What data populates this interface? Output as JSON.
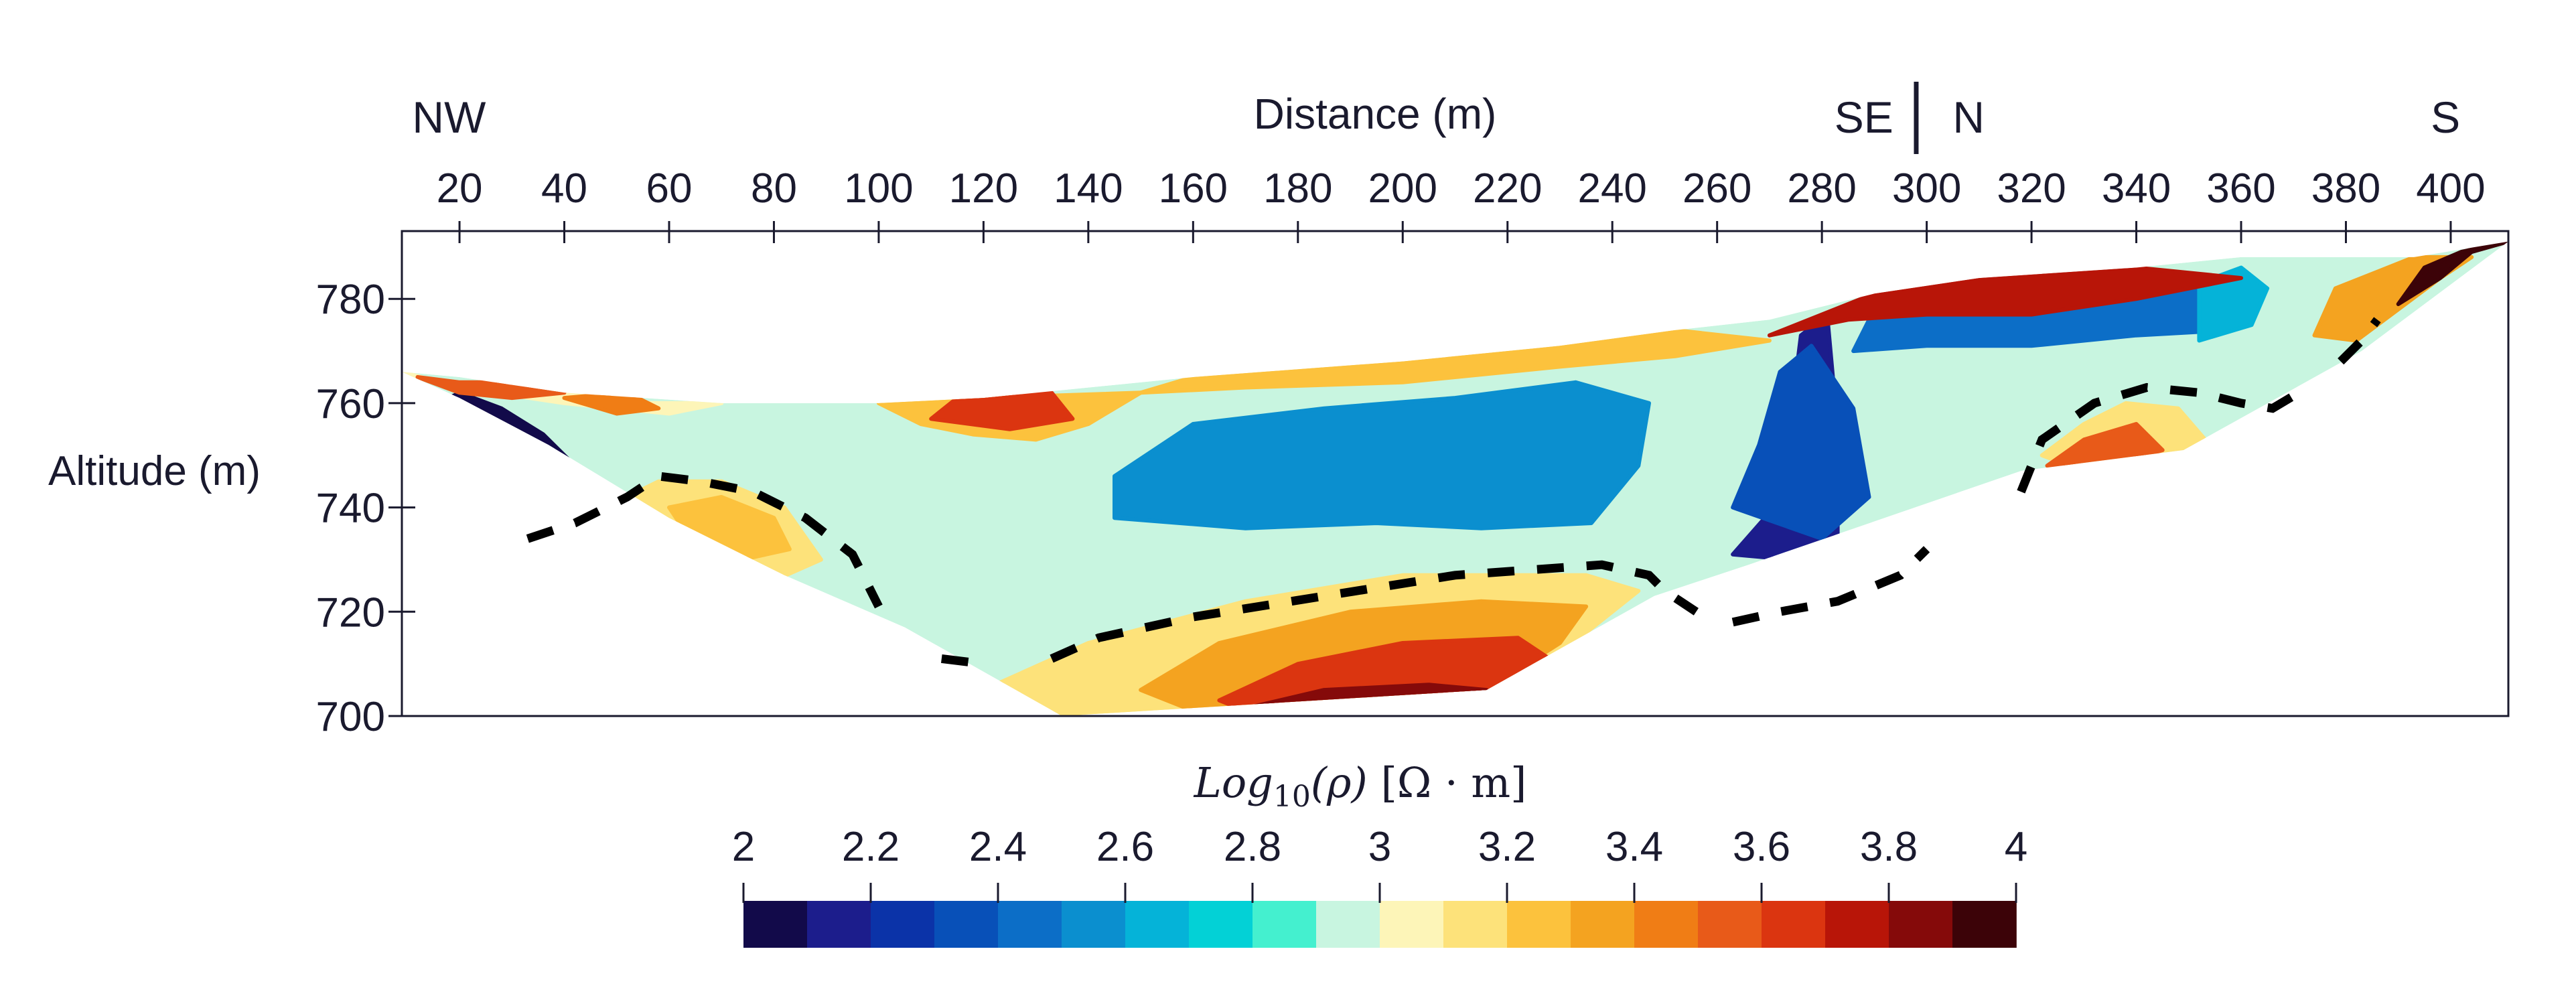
{
  "chart_data": {
    "type": "heatmap",
    "title": "",
    "xlabel": "Distance (m)",
    "ylabel": "Altitude (m)",
    "x_ticks": [
      20,
      40,
      60,
      80,
      100,
      120,
      140,
      160,
      180,
      200,
      220,
      240,
      260,
      280,
      300,
      320,
      340,
      360,
      380,
      400
    ],
    "y_ticks": [
      700,
      720,
      740,
      760,
      780
    ],
    "xlim": [
      9,
      411
    ],
    "ylim": [
      700,
      793
    ],
    "orientation_labels": [
      {
        "text": "NW",
        "x": 18
      },
      {
        "text": "SE",
        "x": 288
      },
      {
        "text": "N",
        "x": 308
      },
      {
        "text": "S",
        "x": 399
      }
    ],
    "orientation_divider_x": 298,
    "colorbar": {
      "label_prefix": "Log",
      "label_subscript": "10",
      "label_symbol": "(ρ)",
      "label_units": "[Ω · m]",
      "ticks": [
        2,
        2.2,
        2.4,
        2.6,
        2.8,
        3,
        3.2,
        3.4,
        3.6,
        3.8,
        4
      ],
      "tick_labels": [
        "2",
        "2.2",
        "2.4",
        "2.6",
        "2.8",
        "3",
        "3.2",
        "3.4",
        "3.6",
        "3.8",
        "4"
      ],
      "range": [
        2,
        4
      ],
      "colors": [
        "#120a4a",
        "#1c1d8c",
        "#0b33a8",
        "#0850b8",
        "#0c6ec7",
        "#0b8fcf",
        "#05b3d8",
        "#03d1d6",
        "#44f0cf",
        "#c8f5e0",
        "#fdf5b8",
        "#fde27a",
        "#fcc23d",
        "#f4a320",
        "#f07d15",
        "#e85a19",
        "#db3510",
        "#b81508",
        "#850a0a",
        "#3c0308"
      ]
    },
    "background_value": 2.9,
    "section_outline": [
      [
        9,
        766
      ],
      [
        20,
        761
      ],
      [
        37,
        752
      ],
      [
        60,
        738
      ],
      [
        82,
        727
      ],
      [
        105,
        717
      ],
      [
        135,
        700
      ],
      [
        216,
        705
      ],
      [
        248,
        723
      ],
      [
        266,
        729
      ],
      [
        318,
        747
      ],
      [
        349,
        751
      ],
      [
        383,
        770
      ],
      [
        411,
        791
      ],
      [
        393,
        788
      ],
      [
        360,
        788
      ],
      [
        340,
        786
      ],
      [
        310,
        784
      ],
      [
        290,
        781
      ],
      [
        270,
        776
      ],
      [
        252,
        774
      ],
      [
        230,
        771
      ],
      [
        200,
        768
      ],
      [
        160,
        765
      ],
      [
        120,
        761
      ],
      [
        100,
        760
      ],
      [
        70,
        760
      ],
      [
        40,
        762
      ],
      [
        20,
        765
      ]
    ],
    "anomalies": [
      {
        "value": 2.05,
        "polygon": [
          [
            14,
            759
          ],
          [
            20,
            762
          ],
          [
            28,
            759
          ],
          [
            36,
            754
          ],
          [
            42,
            748
          ],
          [
            40,
            744
          ],
          [
            34,
            748
          ],
          [
            24,
            752
          ]
        ]
      },
      {
        "value": 2.1,
        "polygon": [
          [
            263,
            731
          ],
          [
            270,
            739
          ],
          [
            274,
            757
          ],
          [
            276,
            773
          ],
          [
            281,
            777
          ],
          [
            283,
            755
          ],
          [
            283,
            735
          ],
          [
            274,
            730
          ]
        ]
      },
      {
        "value": 2.35,
        "polygon": [
          [
            263,
            740
          ],
          [
            268,
            752
          ],
          [
            272,
            766
          ],
          [
            278,
            771
          ],
          [
            286,
            759
          ],
          [
            289,
            742
          ],
          [
            280,
            734
          ]
        ]
      },
      {
        "value": 2.45,
        "polygon": [
          [
            286,
            770
          ],
          [
            300,
            771
          ],
          [
            320,
            771
          ],
          [
            340,
            773
          ],
          [
            358,
            774
          ],
          [
            360,
            781
          ],
          [
            340,
            783
          ],
          [
            310,
            780
          ],
          [
            290,
            778
          ]
        ]
      },
      {
        "value": 2.55,
        "polygon": [
          [
            145,
            738
          ],
          [
            170,
            736
          ],
          [
            195,
            737
          ],
          [
            215,
            736
          ],
          [
            236,
            737
          ],
          [
            245,
            748
          ],
          [
            247,
            760
          ],
          [
            233,
            764
          ],
          [
            210,
            761
          ],
          [
            185,
            759
          ],
          [
            160,
            756
          ],
          [
            145,
            746
          ]
        ]
      },
      {
        "value": 2.6,
        "polygon": [
          [
            352,
            772
          ],
          [
            362,
            775
          ],
          [
            365,
            782
          ],
          [
            360,
            786
          ],
          [
            352,
            783
          ]
        ]
      },
      {
        "value": 3.1,
        "polygon": [
          [
            48,
            740
          ],
          [
            58,
            745
          ],
          [
            70,
            745
          ],
          [
            82,
            740
          ],
          [
            89,
            730
          ],
          [
            80,
            726
          ],
          [
            65,
            730
          ],
          [
            52,
            736
          ]
        ]
      },
      {
        "value": 3.3,
        "polygon": [
          [
            60,
            740
          ],
          [
            70,
            742
          ],
          [
            80,
            738
          ],
          [
            83,
            732
          ],
          [
            74,
            730
          ],
          [
            64,
            734
          ]
        ]
      },
      {
        "value": 3.1,
        "polygon": [
          [
            322,
            750
          ],
          [
            330,
            756
          ],
          [
            338,
            760
          ],
          [
            348,
            759
          ],
          [
            354,
            752
          ],
          [
            345,
            749
          ],
          [
            330,
            747
          ]
        ]
      },
      {
        "value": 3.5,
        "polygon": [
          [
            323,
            748
          ],
          [
            330,
            753
          ],
          [
            340,
            756
          ],
          [
            345,
            751
          ],
          [
            335,
            748
          ]
        ]
      },
      {
        "value": 3.1,
        "polygon": [
          [
            120,
            705
          ],
          [
            140,
            714
          ],
          [
            170,
            722
          ],
          [
            200,
            727
          ],
          [
            235,
            727
          ],
          [
            245,
            724
          ],
          [
            235,
            716
          ],
          [
            215,
            705
          ],
          [
            135,
            700
          ]
        ]
      },
      {
        "value": 3.35,
        "polygon": [
          [
            150,
            705
          ],
          [
            165,
            714
          ],
          [
            190,
            720
          ],
          [
            215,
            722
          ],
          [
            235,
            721
          ],
          [
            230,
            714
          ],
          [
            216,
            705
          ],
          [
            160,
            701
          ]
        ]
      },
      {
        "value": 3.65,
        "polygon": [
          [
            165,
            703
          ],
          [
            180,
            710
          ],
          [
            200,
            714
          ],
          [
            222,
            715
          ],
          [
            228,
            711
          ],
          [
            216,
            705
          ],
          [
            170,
            701
          ]
        ]
      },
      {
        "value": 3.85,
        "polygon": [
          [
            168,
            701
          ],
          [
            185,
            705
          ],
          [
            205,
            706
          ],
          [
            216,
            705
          ],
          [
            200,
            701
          ]
        ]
      },
      {
        "value": 3.2,
        "polygon": [
          [
            100,
            760
          ],
          [
            108,
            756
          ],
          [
            118,
            754
          ],
          [
            130,
            753
          ],
          [
            140,
            756
          ],
          [
            150,
            762
          ],
          [
            120,
            761
          ]
        ]
      },
      {
        "value": 3.6,
        "polygon": [
          [
            110,
            757
          ],
          [
            125,
            755
          ],
          [
            137,
            757
          ],
          [
            133,
            762
          ],
          [
            115,
            761
          ]
        ]
      },
      {
        "value": 3.3,
        "polygon": [
          [
            150,
            762
          ],
          [
            170,
            763
          ],
          [
            200,
            764
          ],
          [
            230,
            767
          ],
          [
            252,
            769
          ],
          [
            270,
            772
          ],
          [
            252,
            774
          ],
          [
            230,
            771
          ],
          [
            200,
            768
          ],
          [
            160,
            765
          ]
        ]
      },
      {
        "value": 3.75,
        "polygon": [
          [
            270,
            773
          ],
          [
            285,
            776
          ],
          [
            300,
            777
          ],
          [
            320,
            777
          ],
          [
            340,
            780
          ],
          [
            360,
            784
          ],
          [
            340,
            786
          ],
          [
            310,
            784
          ],
          [
            290,
            781
          ]
        ]
      },
      {
        "value": 3.35,
        "polygon": [
          [
            374,
            773
          ],
          [
            382,
            772
          ],
          [
            390,
            778
          ],
          [
            398,
            784
          ],
          [
            404,
            788
          ],
          [
            393,
            788
          ],
          [
            378,
            782
          ]
        ]
      },
      {
        "value": 3.9,
        "polygon": [
          [
            390,
            779
          ],
          [
            398,
            784
          ],
          [
            404,
            789
          ],
          [
            411,
            791
          ],
          [
            402,
            789
          ],
          [
            395,
            786
          ]
        ]
      },
      {
        "value": 3.0,
        "polygon": [
          [
            9,
            766
          ],
          [
            15,
            764
          ],
          [
            25,
            763
          ],
          [
            40,
            762
          ],
          [
            55,
            760
          ],
          [
            70,
            760
          ],
          [
            60,
            758
          ],
          [
            40,
            760
          ],
          [
            20,
            763
          ]
        ]
      },
      {
        "value": 3.5,
        "polygon": [
          [
            12,
            765
          ],
          [
            20,
            764
          ],
          [
            30,
            764
          ],
          [
            40,
            762
          ],
          [
            30,
            761
          ],
          [
            20,
            762
          ]
        ]
      },
      {
        "value": 3.4,
        "polygon": [
          [
            40,
            761
          ],
          [
            50,
            758
          ],
          [
            58,
            759
          ],
          [
            52,
            762
          ]
        ]
      }
    ],
    "dashed_boundaries": [
      [
        [
          33,
          734
        ],
        [
          42,
          737
        ],
        [
          52,
          742
        ],
        [
          58,
          746
        ],
        [
          66,
          745
        ],
        [
          76,
          743
        ],
        [
          86,
          738
        ],
        [
          95,
          731
        ],
        [
          100,
          721
        ]
      ],
      [
        [
          112,
          711
        ],
        [
          120,
          710
        ]
      ],
      [
        [
          133,
          711
        ],
        [
          142,
          715
        ],
        [
          160,
          719
        ],
        [
          185,
          723
        ],
        [
          210,
          727
        ],
        [
          238,
          729
        ],
        [
          247,
          727
        ],
        [
          250,
          724
        ],
        [
          256,
          720
        ]
      ],
      [
        [
          263,
          718
        ],
        [
          272,
          720
        ],
        [
          283,
          722
        ],
        [
          295,
          727
        ],
        [
          300,
          732
        ]
      ],
      [
        [
          318,
          743
        ],
        [
          322,
          753
        ],
        [
          332,
          760
        ],
        [
          342,
          763
        ],
        [
          352,
          762
        ],
        [
          360,
          760
        ],
        [
          366,
          759
        ],
        [
          371,
          762
        ]
      ],
      [
        [
          379,
          768
        ],
        [
          383,
          772
        ],
        [
          386,
          776
        ]
      ]
    ]
  }
}
